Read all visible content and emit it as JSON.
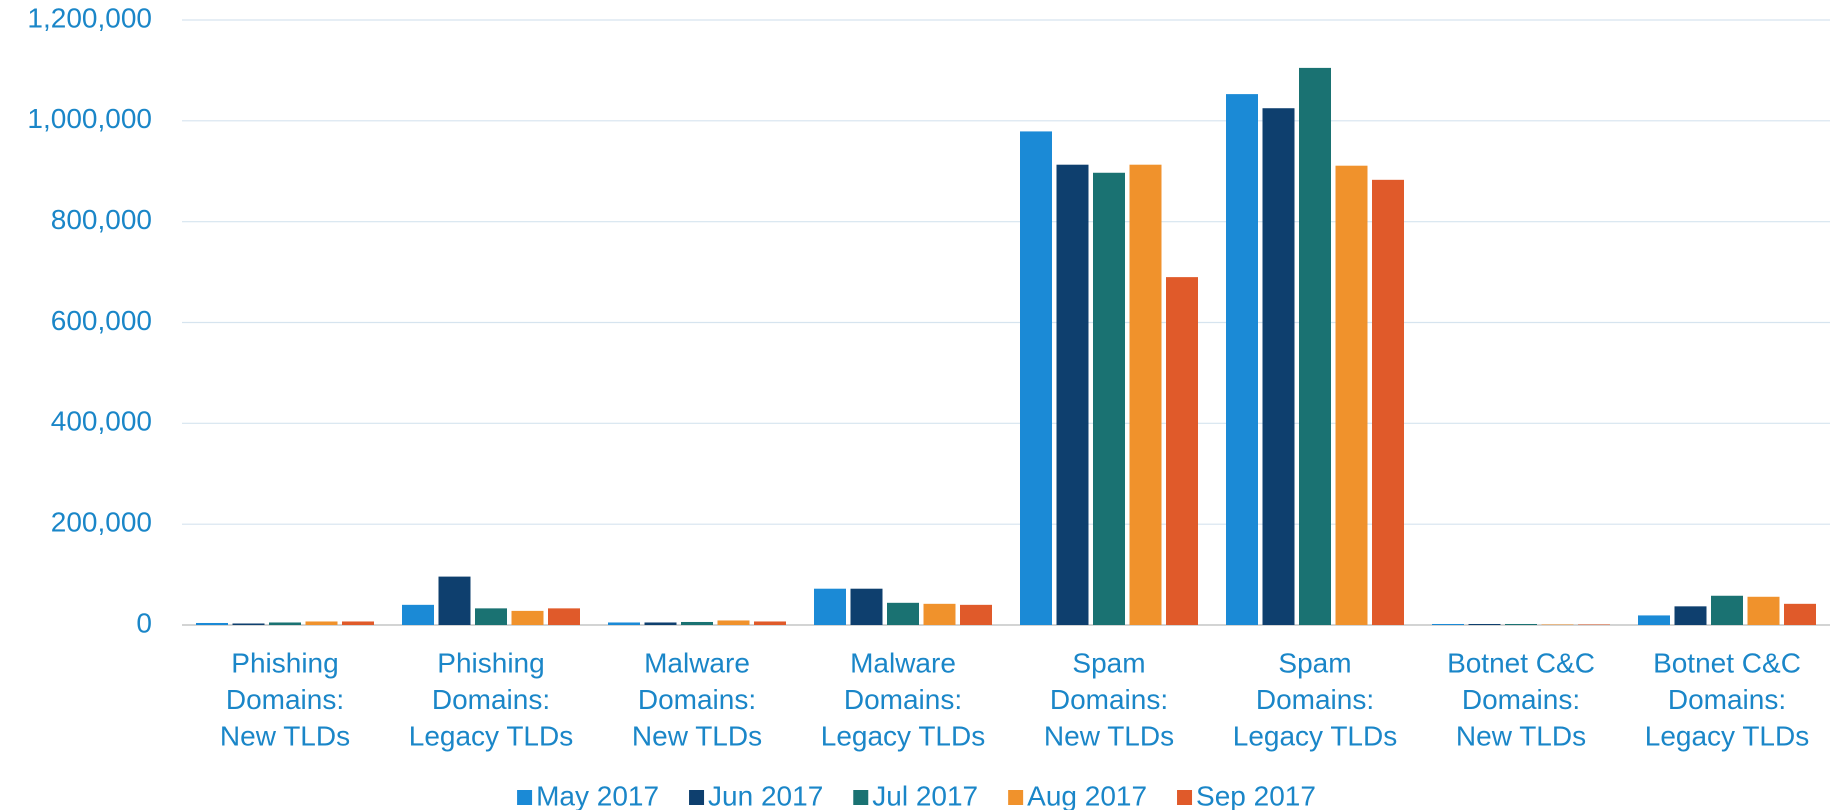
{
  "chart_data": {
    "type": "bar",
    "categories": [
      [
        "Phishing",
        "Domains:",
        "New TLDs"
      ],
      [
        "Phishing",
        "Domains:",
        "Legacy TLDs"
      ],
      [
        "Malware",
        "Domains:",
        "New TLDs"
      ],
      [
        "Malware",
        "Domains:",
        "Legacy TLDs"
      ],
      [
        "Spam",
        "Domains:",
        "New TLDs"
      ],
      [
        "Spam",
        "Domains:",
        "Legacy TLDs"
      ],
      [
        "Botnet C&C",
        "Domains:",
        "New TLDs"
      ],
      [
        "Botnet C&C",
        "Domains:",
        "Legacy TLDs"
      ]
    ],
    "series": [
      {
        "name": "May 2017",
        "color": "#1b8ad6",
        "values": [
          4000,
          40000,
          5000,
          72000,
          979000,
          1053000,
          2000,
          19000
        ]
      },
      {
        "name": "Jun 2017",
        "color": "#0e3f6e",
        "values": [
          3000,
          96000,
          5000,
          72000,
          913000,
          1025000,
          2000,
          37000
        ]
      },
      {
        "name": "Jul 2017",
        "color": "#1a7272",
        "values": [
          5000,
          33000,
          6000,
          44000,
          897000,
          1105000,
          2000,
          58000
        ]
      },
      {
        "name": "Aug 2017",
        "color": "#f0922c",
        "values": [
          7000,
          28000,
          9000,
          42000,
          913000,
          911000,
          1000,
          56000
        ]
      },
      {
        "name": "Sep 2017",
        "color": "#e05a2a",
        "values": [
          7000,
          33000,
          7000,
          40000,
          690000,
          883000,
          1000,
          42000
        ]
      }
    ],
    "ylim": [
      0,
      1200000
    ],
    "yticks": [
      0,
      {
        "value": 200000,
        "label": "200,000"
      },
      {
        "value": 400000,
        "label": "400,000"
      },
      {
        "value": 600000,
        "label": "600,000"
      },
      {
        "value": 800000,
        "label": "800,000"
      },
      {
        "value": 1000000,
        "label": "1,000,000"
      },
      {
        "value": 1200000,
        "label": "1,200,000"
      }
    ],
    "grid": true,
    "legend": "bottom"
  }
}
